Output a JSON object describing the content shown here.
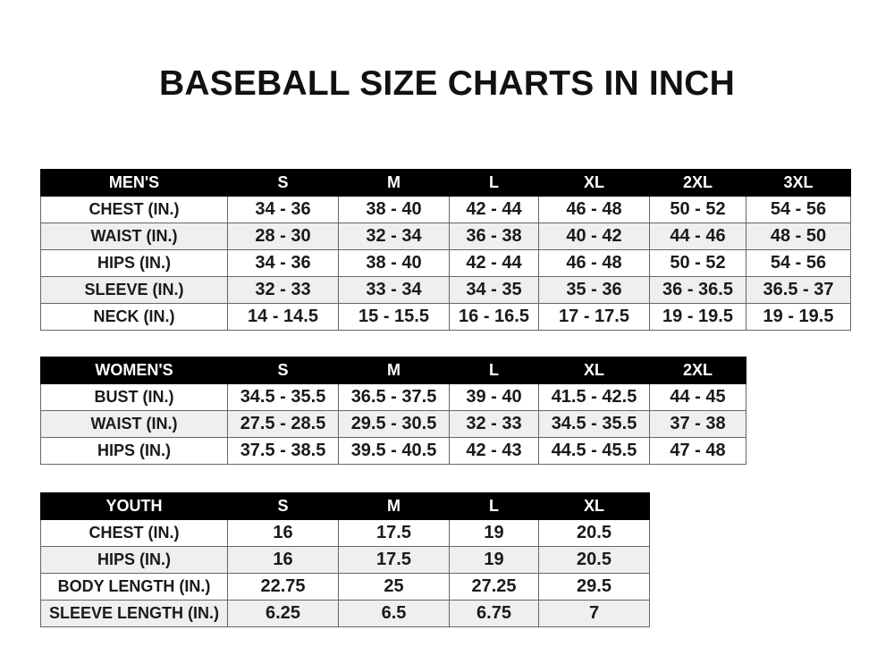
{
  "title": "BASEBALL SIZE CHARTS IN INCH",
  "tables": [
    {
      "header": [
        "MEN'S",
        "S",
        "M",
        "L",
        "XL",
        "2XL",
        "3XL"
      ],
      "rows": [
        [
          "CHEST (IN.)",
          "34 - 36",
          "38 - 40",
          "42 - 44",
          "46 - 48",
          "50 - 52",
          "54 - 56"
        ],
        [
          "WAIST (IN.)",
          "28 - 30",
          "32 - 34",
          "36 - 38",
          "40 - 42",
          "44 - 46",
          "48 - 50"
        ],
        [
          "HIPS (IN.)",
          "34 - 36",
          "38 - 40",
          "42 - 44",
          "46 - 48",
          "50 - 52",
          "54 - 56"
        ],
        [
          "SLEEVE (IN.)",
          "32 - 33",
          "33 - 34",
          "34 - 35",
          "35 - 36",
          "36 - 36.5",
          "36.5 - 37"
        ],
        [
          "NECK (IN.)",
          "14 - 14.5",
          "15 - 15.5",
          "16 - 16.5",
          "17 - 17.5",
          "19 - 19.5",
          "19 - 19.5"
        ]
      ]
    },
    {
      "header": [
        "WOMEN'S",
        "S",
        "M",
        "L",
        "XL",
        "2XL"
      ],
      "rows": [
        [
          "BUST (IN.)",
          "34.5 - 35.5",
          "36.5 - 37.5",
          "39 - 40",
          "41.5 - 42.5",
          "44 - 45"
        ],
        [
          "WAIST (IN.)",
          "27.5 - 28.5",
          "29.5 - 30.5",
          "32 - 33",
          "34.5 - 35.5",
          "37 - 38"
        ],
        [
          "HIPS (IN.)",
          "37.5 - 38.5",
          "39.5 - 40.5",
          "42 - 43",
          "44.5 - 45.5",
          "47 - 48"
        ]
      ]
    },
    {
      "header": [
        "YOUTH",
        "S",
        "M",
        "L",
        "XL"
      ],
      "rows": [
        [
          "CHEST (IN.)",
          "16",
          "17.5",
          "19",
          "20.5"
        ],
        [
          "HIPS (IN.)",
          "16",
          "17.5",
          "19",
          "20.5"
        ],
        [
          "BODY LENGTH (IN.)",
          "22.75",
          "25",
          "27.25",
          "29.5"
        ],
        [
          "SLEEVE LENGTH (IN.)",
          "6.25",
          "6.5",
          "6.75",
          "7"
        ]
      ]
    }
  ]
}
